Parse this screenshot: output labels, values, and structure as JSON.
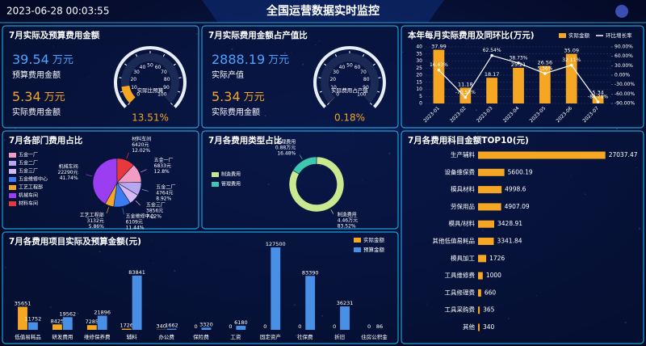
{
  "header": {
    "datetime": "2023-06-28 00:03:55",
    "title": "全国运营数据实时监控"
  },
  "chart_data": [
    {
      "type": "gauge",
      "title": "7月实际及预算费用金额",
      "kpis": [
        {
          "value": 39.54,
          "unit": "万元",
          "label": "预算费用金额",
          "color": "#4da3ff"
        },
        {
          "value": 5.34,
          "unit": "万元",
          "label": "实际费用金额",
          "color": "#f5a623"
        }
      ],
      "value": 13.51,
      "value_label": "13.51%",
      "gauge_label": "实际比预算",
      "lim": [
        0,
        100
      ],
      "ticks": [
        0,
        10,
        20,
        30,
        40,
        50,
        60,
        70,
        80,
        90,
        100
      ],
      "color": "#f5a623"
    },
    {
      "type": "gauge",
      "title": "7月实际费用金额占产值比",
      "kpis": [
        {
          "value": 2888.19,
          "unit": "万元",
          "label": "实际产值",
          "color": "#4da3ff"
        },
        {
          "value": 5.34,
          "unit": "万元",
          "label": "实际费用金额",
          "color": "#f5a623"
        }
      ],
      "value": 0.18,
      "value_label": "0.18%",
      "gauge_label": "实际费用占产值",
      "lim": [
        0,
        100
      ],
      "ticks": [
        0,
        10,
        20,
        30,
        40,
        50,
        60,
        70,
        80,
        90,
        100
      ],
      "color": "#f5a623"
    },
    {
      "type": "bar",
      "title": "本年每月实际费用及同环比(万元)",
      "categories": [
        "2023-01",
        "2023-02",
        "2023-03",
        "2023-04",
        "2023-05",
        "2023-06",
        "2023-07"
      ],
      "series": [
        {
          "name": "实际金额",
          "type": "bar",
          "color": "#f5a623",
          "values": [
            37.99,
            11.18,
            18.17,
            25.21,
            26.56,
            35.09,
            5.34
          ]
        },
        {
          "name": "环比增长率",
          "type": "line",
          "axis": "y2",
          "color": "#ffffff",
          "values": [
            16.43,
            -70.57,
            62.54,
            38.73,
            5.36,
            32.11,
            -84.78
          ],
          "value_labels": [
            "16.43%",
            "-70.57%",
            "62.54%",
            "38.73%",
            "5.36%",
            "32.11%",
            "-84.78%"
          ]
        }
      ],
      "ylim": [
        0,
        40
      ],
      "yticks": [
        0,
        5,
        10,
        15,
        20,
        25,
        30,
        35,
        40
      ],
      "y2lim": [
        -90,
        90
      ],
      "y2ticks": [
        {
          "value": -90,
          "label": "-90.00%"
        },
        {
          "value": -60,
          "label": "-60.00%"
        },
        {
          "value": -30,
          "label": "-30.00%"
        },
        {
          "value": 0,
          "label": "0.00%"
        },
        {
          "value": 30,
          "label": "30.00%"
        },
        {
          "value": 60,
          "label": "60.00%"
        },
        {
          "value": 90,
          "label": "90.00%"
        }
      ],
      "grid": true,
      "legend": "top-right"
    },
    {
      "type": "pie",
      "title": "7月各部门费用占比",
      "categories": [
        "五金一厂",
        "五金二厂",
        "五金三厂",
        "五金维修中心",
        "工艺工程部",
        "机械车间",
        "材料车间"
      ],
      "values": [
        6833,
        4764,
        3856,
        6109,
        3132,
        22290,
        6420
      ],
      "value_labels": [
        "6833元",
        "4764元",
        "3856元",
        "6109元",
        "3132元",
        "22290元",
        "6420元"
      ],
      "percent_labels": [
        "12.8%",
        "8.92%",
        "7.22%",
        "11.44%",
        "5.86%",
        "41.74%",
        "12.02%"
      ],
      "colors": [
        "#f29cc4",
        "#b7a6f0",
        "#d8b8f4",
        "#3d7bf0",
        "#f5a623",
        "#9b3df0",
        "#e8383d"
      ],
      "legend": "left"
    },
    {
      "type": "donut",
      "title": "7月各费用类型占比",
      "categories": [
        "制造费用",
        "管理费用"
      ],
      "values": [
        4.46,
        0.88
      ],
      "value_labels": [
        "4.46万元",
        "0.88万元"
      ],
      "percent_labels": [
        "83.52%",
        "16.48%"
      ],
      "colors": [
        "#c9e88f",
        "#3cc8b0"
      ],
      "legend": "left"
    },
    {
      "type": "bar",
      "title": "7月各费用项目实际及预算金额(元)",
      "categories": [
        "低值易耗品",
        "研发费用",
        "维修保养费",
        "辅料",
        "办公费",
        "保险费",
        "工资",
        "固定资产",
        "社保费",
        "折旧",
        "住房公积金"
      ],
      "series": [
        {
          "name": "实际金额",
          "type": "bar",
          "color": "#f5a623",
          "values": [
            35651,
            8425,
            7285,
            1726,
            340,
            0,
            0,
            0,
            0,
            0,
            0
          ]
        },
        {
          "name": "预算金额",
          "type": "bar",
          "color": "#4a8fe6",
          "values": [
            11752,
            19562,
            21896,
            83841,
            1662,
            3320,
            6180,
            127500,
            83390,
            36231,
            86
          ]
        }
      ],
      "ylim": [
        0,
        135000
      ],
      "legend": "top-right"
    },
    {
      "type": "barh",
      "title": "7月各费用科目金额TOP10(元)",
      "categories": [
        "生产辅料",
        "设备维保费",
        "模具材料",
        "劳保用品",
        "模具/材料",
        "其他低值易耗品",
        "模具加工",
        "工具维修费",
        "工具修理费",
        "工具采购费",
        "其他"
      ],
      "values": [
        27037.47,
        5600.19,
        4998.6,
        4907.09,
        3428.91,
        3341.84,
        1726,
        1000,
        660,
        365,
        340
      ],
      "color": "#f5a623",
      "xlim": [
        0,
        30000
      ]
    }
  ]
}
